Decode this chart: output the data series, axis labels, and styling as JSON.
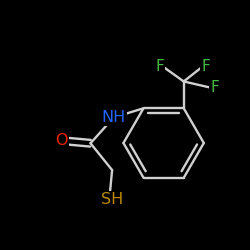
{
  "bg_color": "#000000",
  "bond_color": "#d0d0d0",
  "atom_colors": {
    "O": "#ee2200",
    "N": "#2266ff",
    "S": "#bb8800",
    "F": "#44bb44"
  },
  "bond_width": 1.7,
  "font_size": 11.5
}
